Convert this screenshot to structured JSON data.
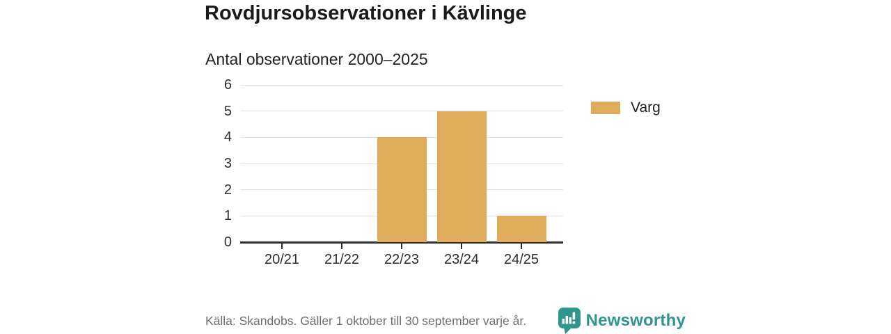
{
  "title": "Rovdjursobservationer i Kävlinge",
  "subtitle": "Antal observationer 2000–2025",
  "legend": {
    "items": [
      {
        "label": "Varg",
        "color": "#DDAD5C"
      }
    ]
  },
  "footer": {
    "source": "Källa: Skandobs. Gäller 1 oktober till 30 september varje år.",
    "brand": "Newsworthy"
  },
  "colors": {
    "bar": "#DDAD5C",
    "teal": "#2F968C",
    "grid": "#E2E2E2",
    "axis": "#2E2E2E",
    "muted": "#6E6E6E"
  },
  "chart_data": {
    "type": "bar",
    "categories": [
      "20/21",
      "21/22",
      "22/23",
      "23/24",
      "24/25"
    ],
    "series": [
      {
        "name": "Varg",
        "values": [
          0,
          0,
          4,
          5,
          1
        ]
      }
    ],
    "title": "Rovdjursobservationer i Kävlinge",
    "subtitle": "Antal observationer 2000–2025",
    "xlabel": "",
    "ylabel": "",
    "ylim": [
      0,
      6
    ],
    "yticks": [
      0,
      1,
      2,
      3,
      4,
      5,
      6
    ],
    "grid": true,
    "legend_position": "right"
  }
}
